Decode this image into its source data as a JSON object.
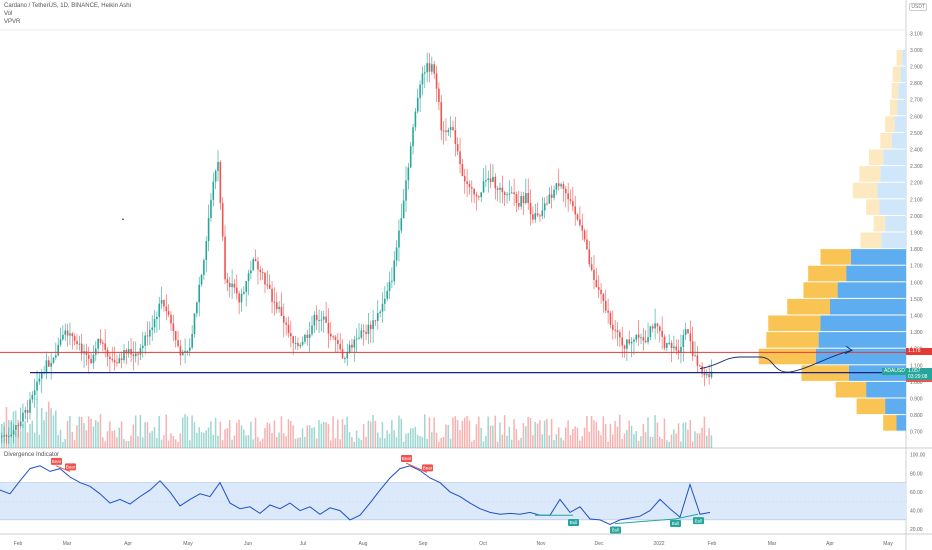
{
  "legend": {
    "title": "Cardano / TetherUS, 1D, BINANCE, Heikin Ashi",
    "line2": "Vol",
    "line3": "VPVR"
  },
  "indicator_legend": "Divergence Indicator",
  "currency_badge": "USDT",
  "price_tags": {
    "resistance": "1.178",
    "current_symbol": "ADAUSDT",
    "current_price": "1.057",
    "countdown": "03:29:08",
    "support": "1.056"
  },
  "colors": {
    "bull": "#26a69a",
    "bear": "#ef5350",
    "resistance_line": "#e53935",
    "support_line": "#1a237e",
    "osc_line": "#1e50c8",
    "osc_band": "#dce9fb",
    "vp_up": "#5eadf0",
    "vp_down": "#f9c454"
  },
  "chart_data": [
    {
      "type": "candlestick",
      "title": "Cardano / TetherUS, 1D, BINANCE, Heikin Ashi",
      "x_tick_labels": [
        "Feb",
        "Mar",
        "Apr",
        "May",
        "Jun",
        "Jul",
        "Aug",
        "Sep",
        "Oct",
        "Nov",
        "Dec",
        "2022",
        "Feb",
        "Mar",
        "Apr",
        "May"
      ],
      "y_tick_labels": [
        "3.100",
        "3.000",
        "2.900",
        "2.800",
        "2.700",
        "2.600",
        "2.500",
        "2.400",
        "2.300",
        "2.200",
        "2.100",
        "2.000",
        "1.900",
        "1.800",
        "1.700",
        "1.600",
        "1.500",
        "1.400",
        "1.300",
        "1.200",
        "1.100",
        "1.000",
        "0.900",
        "0.800",
        "0.700"
      ],
      "ylim": [
        0.65,
        3.12
      ],
      "price_path_x": [
        0,
        8,
        14,
        21,
        28,
        35,
        42,
        49,
        56,
        63,
        70,
        77,
        84,
        91,
        98,
        105,
        112,
        119,
        126,
        133,
        140,
        147,
        154,
        161,
        168,
        175,
        182,
        189,
        196,
        203,
        210,
        217,
        224,
        231,
        238,
        245,
        252,
        259,
        266,
        273,
        280,
        287,
        294,
        301,
        308,
        315,
        322,
        329,
        336,
        343,
        350,
        357,
        364,
        371,
        378,
        385,
        392,
        399,
        406,
        413,
        420,
        427,
        434,
        441,
        448,
        455,
        462,
        469,
        476,
        483,
        490,
        497,
        504,
        511,
        518,
        525,
        532,
        539,
        546,
        553,
        560,
        567,
        574,
        581,
        588,
        595,
        602,
        609,
        616,
        623,
        630,
        637,
        644,
        651,
        658,
        665,
        672,
        679,
        686,
        693,
        700,
        707,
        714
      ],
      "price_path_y": [
        0.67,
        0.69,
        0.72,
        0.78,
        0.85,
        0.95,
        1.08,
        1.12,
        1.2,
        1.32,
        1.3,
        1.25,
        1.15,
        1.1,
        1.25,
        1.2,
        1.12,
        1.15,
        1.18,
        1.17,
        1.2,
        1.3,
        1.38,
        1.5,
        1.4,
        1.25,
        1.15,
        1.2,
        1.5,
        1.75,
        2.1,
        2.35,
        1.65,
        1.58,
        1.48,
        1.6,
        1.72,
        1.7,
        1.58,
        1.48,
        1.42,
        1.3,
        1.2,
        1.25,
        1.3,
        1.4,
        1.38,
        1.3,
        1.22,
        1.15,
        1.22,
        1.28,
        1.3,
        1.35,
        1.42,
        1.5,
        1.65,
        1.95,
        2.25,
        2.55,
        2.85,
        2.9,
        2.88,
        2.5,
        2.55,
        2.45,
        2.25,
        2.15,
        2.1,
        2.2,
        2.22,
        2.18,
        2.1,
        2.15,
        2.08,
        2.12,
        2.0,
        1.98,
        2.08,
        2.15,
        2.22,
        2.1,
        2.0,
        1.95,
        1.72,
        1.58,
        1.48,
        1.38,
        1.28,
        1.22,
        1.25,
        1.3,
        1.25,
        1.35,
        1.3,
        1.22,
        1.2,
        1.2,
        1.35,
        1.15,
        1.06,
        1.05,
        1.06
      ],
      "resistance_level": 1.178,
      "support_level": 1.056,
      "current_price": 1.057,
      "annotations": [],
      "volume_profile": {
        "prices": [
          0.75,
          0.85,
          0.95,
          1.05,
          1.15,
          1.25,
          1.35,
          1.45,
          1.55,
          1.65,
          1.75,
          1.85,
          1.95,
          2.05,
          2.15,
          2.25,
          2.35,
          2.45,
          2.55,
          2.65,
          2.75,
          2.85,
          2.95
        ],
        "up": [
          10,
          22,
          42,
          60,
          95,
          92,
          90,
          80,
          72,
          63,
          58,
          26,
          22,
          28,
          30,
          27,
          24,
          15,
          12,
          9,
          8,
          6,
          4
        ],
        "down": [
          14,
          30,
          32,
          50,
          60,
          55,
          55,
          45,
          36,
          40,
          32,
          22,
          12,
          14,
          26,
          22,
          15,
          12,
          10,
          8,
          7,
          8,
          6
        ]
      }
    },
    {
      "type": "line",
      "title": "Divergence Indicator",
      "y_tick_labels": [
        "100.00",
        "80.00",
        "60.00",
        "40.00",
        "20.00"
      ],
      "ylim": [
        17,
        105
      ],
      "band": [
        30,
        70
      ],
      "x": [
        0,
        10,
        20,
        30,
        40,
        50,
        60,
        70,
        80,
        90,
        100,
        110,
        120,
        130,
        140,
        150,
        160,
        170,
        180,
        190,
        200,
        210,
        220,
        230,
        240,
        250,
        260,
        270,
        280,
        290,
        300,
        310,
        320,
        330,
        340,
        350,
        360,
        370,
        380,
        390,
        400,
        410,
        420,
        430,
        440,
        450,
        460,
        470,
        480,
        490,
        500,
        510,
        520,
        530,
        540,
        550,
        560,
        570,
        580,
        590,
        600,
        610,
        620,
        630,
        640,
        650,
        660,
        670,
        680,
        690,
        700,
        710
      ],
      "values": [
        62,
        58,
        72,
        85,
        88,
        82,
        85,
        76,
        70,
        66,
        58,
        48,
        52,
        47,
        55,
        62,
        72,
        60,
        45,
        52,
        58,
        55,
        70,
        48,
        42,
        44,
        37,
        46,
        42,
        48,
        40,
        44,
        36,
        43,
        40,
        30,
        35,
        48,
        62,
        75,
        85,
        88,
        83,
        75,
        70,
        60,
        55,
        48,
        42,
        38,
        36,
        37,
        36,
        38,
        35,
        35,
        52,
        38,
        44,
        31,
        30,
        25,
        30,
        32,
        34,
        40,
        52,
        42,
        33,
        68,
        36,
        38
      ],
      "annotations": [
        {
          "text": "Bear",
          "kind": "bear",
          "x": 56,
          "y": 88
        },
        {
          "text": "Bear",
          "kind": "bear",
          "x": 70,
          "y": 82
        },
        {
          "text": "Bear",
          "kind": "bear",
          "x": 406,
          "y": 91
        },
        {
          "text": "Bear",
          "kind": "bear",
          "x": 427,
          "y": 81
        },
        {
          "text": "Bull",
          "kind": "bull",
          "x": 573,
          "y": 32
        },
        {
          "text": "Bull",
          "kind": "bull",
          "x": 615,
          "y": 24
        },
        {
          "text": "Bull",
          "kind": "bull",
          "x": 675,
          "y": 31
        },
        {
          "text": "Bull",
          "kind": "bull",
          "x": 698,
          "y": 34
        }
      ]
    }
  ]
}
